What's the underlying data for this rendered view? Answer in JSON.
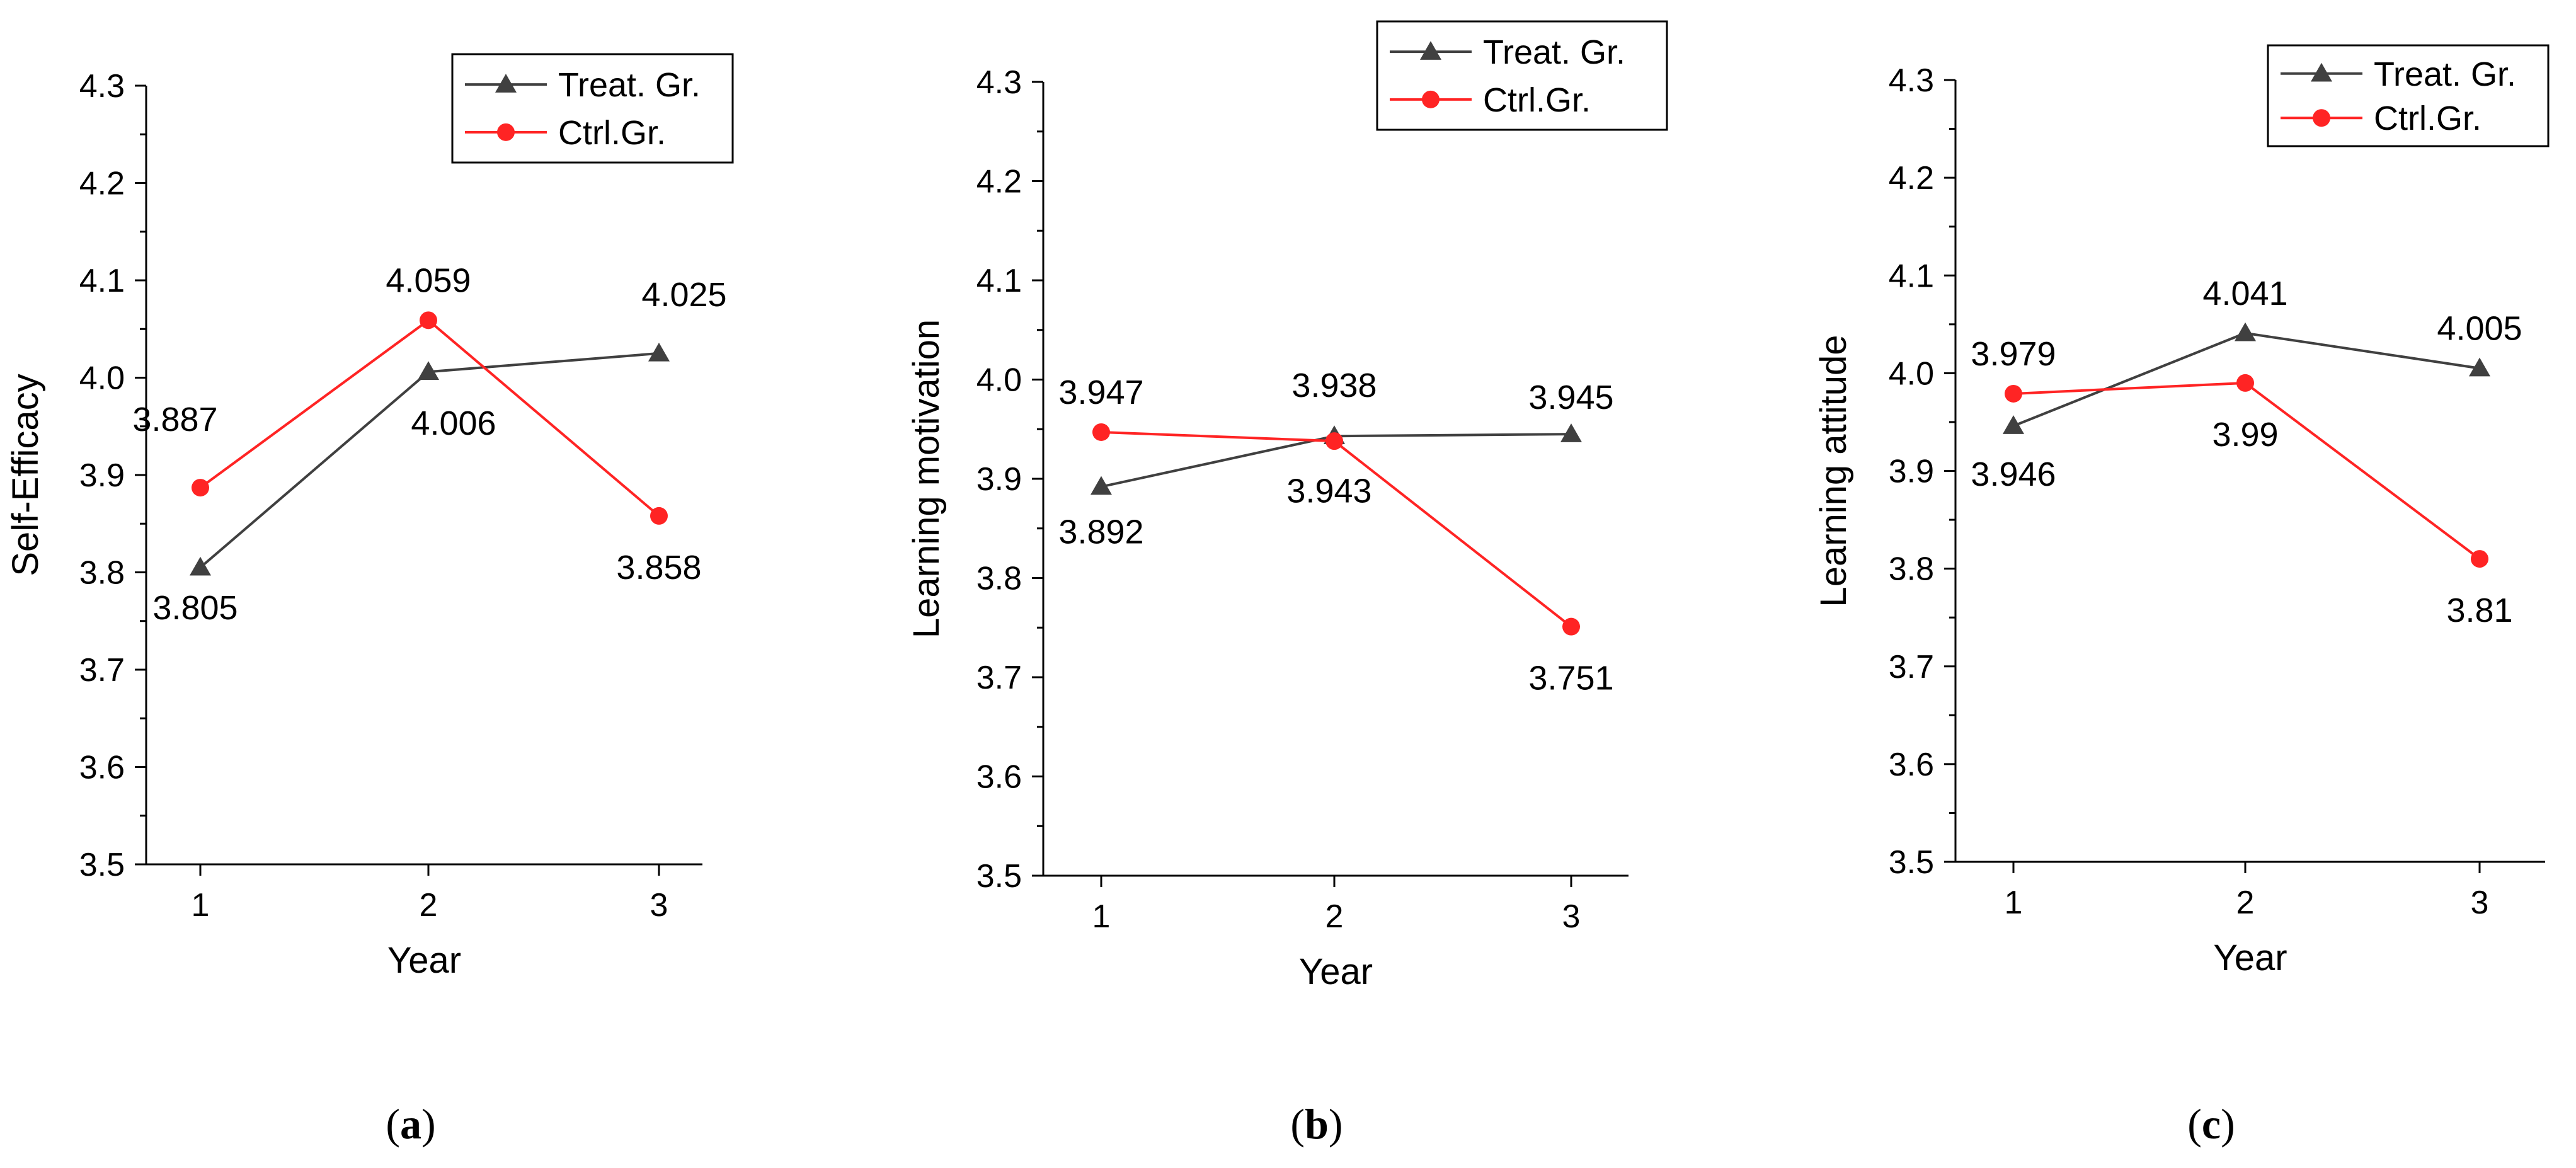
{
  "colors": {
    "treat": "#404040",
    "ctrl": "#ff2424",
    "axis": "#000000"
  },
  "chart_data": [
    {
      "type": "line",
      "panel": "a",
      "caption": "a",
      "xlabel": "Year",
      "ylabel": "Self-Efficacy",
      "categories": [
        "1",
        "2",
        "3"
      ],
      "ylim": [
        3.5,
        4.3
      ],
      "yticks": [
        "3.5",
        "3.6",
        "3.7",
        "3.8",
        "3.9",
        "4.0",
        "4.1",
        "4.2",
        "4.3"
      ],
      "legend": "top-right",
      "series": [
        {
          "name": "Treat. Gr.",
          "marker": "triangle",
          "values": [
            3.805,
            4.006,
            4.025
          ],
          "labels": [
            "3.805",
            "4.006",
            "4.025"
          ]
        },
        {
          "name": "Ctrl.Gr.",
          "marker": "circle",
          "values": [
            3.887,
            4.059,
            3.858
          ],
          "labels": [
            "3.887",
            "4.059",
            "3.858"
          ]
        }
      ]
    },
    {
      "type": "line",
      "panel": "b",
      "caption": "b",
      "xlabel": "Year",
      "ylabel": "Learning motivation",
      "categories": [
        "1",
        "2",
        "3"
      ],
      "ylim": [
        3.5,
        4.3
      ],
      "yticks": [
        "3.5",
        "3.6",
        "3.7",
        "3.8",
        "3.9",
        "4.0",
        "4.1",
        "4.2",
        "4.3"
      ],
      "legend": "top-right",
      "series": [
        {
          "name": "Treat. Gr.",
          "marker": "triangle",
          "values": [
            3.892,
            3.943,
            3.945
          ],
          "labels": [
            "3.892",
            "3.943",
            "3.945"
          ]
        },
        {
          "name": "Ctrl.Gr.",
          "marker": "circle",
          "values": [
            3.947,
            3.938,
            3.751
          ],
          "labels": [
            "3.947",
            "3.938",
            "3.751"
          ]
        }
      ]
    },
    {
      "type": "line",
      "panel": "c",
      "caption": "c",
      "xlabel": "Year",
      "ylabel": "Learning attitude",
      "categories": [
        "1",
        "2",
        "3"
      ],
      "ylim": [
        3.5,
        4.3
      ],
      "yticks": [
        "3.5",
        "3.6",
        "3.7",
        "3.8",
        "3.9",
        "4.0",
        "4.1",
        "4.2",
        "4.3"
      ],
      "legend": "top-right",
      "series": [
        {
          "name": "Treat. Gr.",
          "marker": "triangle",
          "values": [
            3.946,
            4.041,
            4.005
          ],
          "labels": [
            "3.946",
            "4.041",
            "4.005"
          ]
        },
        {
          "name": "Ctrl.Gr.",
          "marker": "circle",
          "values": [
            3.979,
            3.99,
            3.81
          ],
          "labels": [
            "3.979",
            "3.99",
            "3.81"
          ]
        }
      ]
    }
  ]
}
